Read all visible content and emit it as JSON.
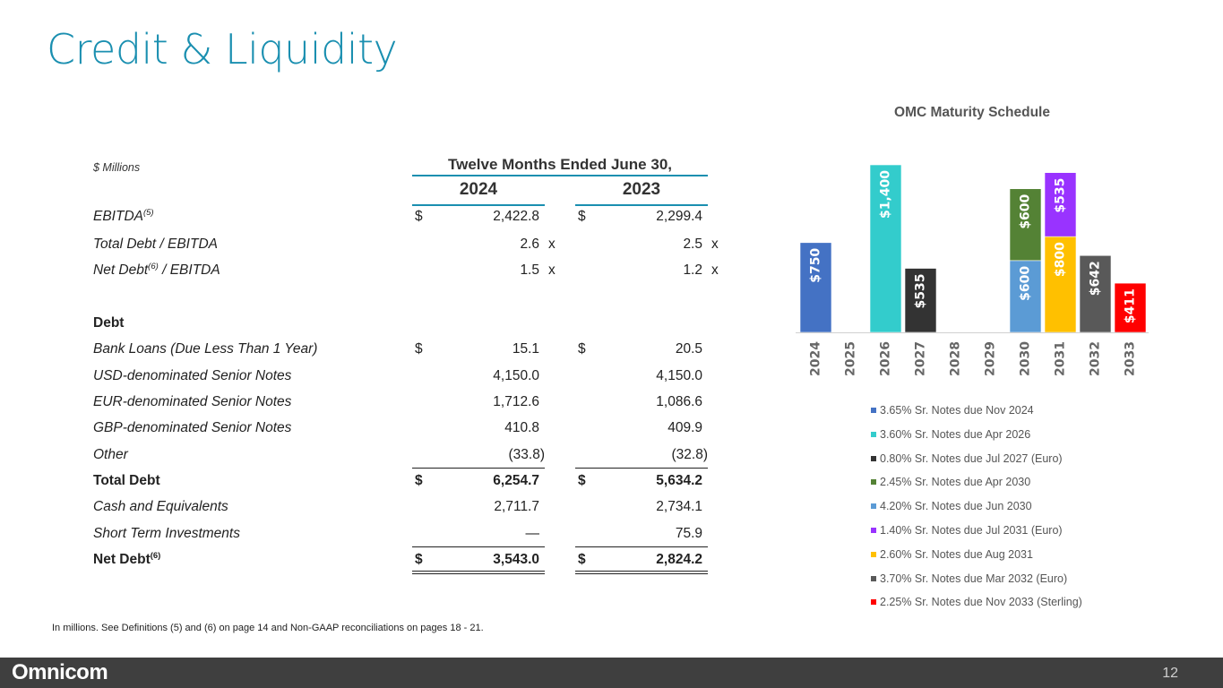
{
  "page": {
    "title": "Credit & Liquidity",
    "page_number": "12",
    "logo": "Omnicom",
    "footnote": "In millions.  See Definitions (5) and (6) on page 14 and Non-GAAP reconciliations on pages 18 - 21."
  },
  "table": {
    "units": "$ Millions",
    "period_header": "Twelve Months Ended June 30,",
    "years": [
      "2024",
      "2023"
    ],
    "rows": [
      {
        "label": "EBITDA",
        "sup": "(5)",
        "cur24": "$",
        "v24": "2,422.8",
        "s24": "",
        "cur23": "$",
        "v23": "2,299.4",
        "s23": ""
      },
      {
        "label": "Total Debt / EBITDA",
        "sup": "",
        "cur24": "",
        "v24": "2.6",
        "s24": "x",
        "cur23": "",
        "v23": "2.5",
        "s23": "x"
      },
      {
        "label": "Net Debt",
        "sup": "(6)",
        "label_tail": " / EBITDA",
        "cur24": "",
        "v24": "1.5",
        "s24": "x",
        "cur23": "",
        "v23": "1.2",
        "s23": "x"
      },
      {
        "label": "Debt",
        "sup": "",
        "cur24": "",
        "v24": "",
        "s24": "",
        "cur23": "",
        "v23": "",
        "s23": ""
      },
      {
        "label": "Bank Loans (Due Less Than 1 Year)",
        "sup": "",
        "cur24": "$",
        "v24": "15.1",
        "s24": "",
        "cur23": "$",
        "v23": "20.5",
        "s23": ""
      },
      {
        "label": "USD-denominated Senior Notes",
        "sup": "",
        "cur24": "",
        "v24": "4,150.0",
        "s24": "",
        "cur23": "",
        "v23": "4,150.0",
        "s23": ""
      },
      {
        "label": "EUR-denominated Senior Notes",
        "sup": "",
        "cur24": "",
        "v24": "1,712.6",
        "s24": "",
        "cur23": "",
        "v23": "1,086.6",
        "s23": ""
      },
      {
        "label": "GBP-denominated Senior Notes",
        "sup": "",
        "cur24": "",
        "v24": "410.8",
        "s24": "",
        "cur23": "",
        "v23": "409.9",
        "s23": ""
      },
      {
        "label": "Other",
        "sup": "",
        "cur24": "",
        "v24": "(33.8)",
        "s24": "",
        "cur23": "",
        "v23": "(32.8)",
        "s23": ""
      },
      {
        "label": "Total Debt",
        "sup": "",
        "cur24": "$",
        "v24": "6,254.7",
        "s24": "",
        "cur23": "$",
        "v23": "5,634.2",
        "s23": ""
      },
      {
        "label": "Cash and Equivalents",
        "sup": "",
        "cur24": "",
        "v24": "2,711.7",
        "s24": "",
        "cur23": "",
        "v23": "2,734.1",
        "s23": ""
      },
      {
        "label": "Short Term Investments",
        "sup": "",
        "cur24": "",
        "v24": "—",
        "s24": "",
        "cur23": "",
        "v23": "75.9",
        "s23": ""
      },
      {
        "label": "Net Debt",
        "sup": "(6)",
        "cur24": "$",
        "v24": "3,543.0",
        "s24": "",
        "cur23": "$",
        "v23": "2,824.2",
        "s23": ""
      }
    ]
  },
  "chart_data": {
    "type": "bar",
    "stacked": true,
    "title": "OMC Maturity Schedule",
    "categories": [
      "2024",
      "2025",
      "2026",
      "2027",
      "2028",
      "2029",
      "2030",
      "2031",
      "2032",
      "2033"
    ],
    "series": [
      {
        "name": "3.65% Sr. Notes due Nov 2024",
        "color": "#4472c4",
        "values": [
          750,
          0,
          0,
          0,
          0,
          0,
          0,
          0,
          0,
          0
        ]
      },
      {
        "name": "3.60% Sr. Notes due Apr 2026",
        "color": "#33cccc",
        "values": [
          0,
          0,
          1400,
          0,
          0,
          0,
          0,
          0,
          0,
          0
        ]
      },
      {
        "name": "0.80% Sr. Notes due Jul 2027 (Euro)",
        "color": "#333333",
        "values": [
          0,
          0,
          0,
          535,
          0,
          0,
          0,
          0,
          0,
          0
        ]
      },
      {
        "name": "2.45% Sr. Notes due Apr 2030",
        "color": "#548235",
        "values": [
          0,
          0,
          0,
          0,
          0,
          0,
          600,
          0,
          0,
          0
        ]
      },
      {
        "name": "4.20% Sr. Notes due Jun 2030",
        "color": "#5b9bd5",
        "values": [
          0,
          0,
          0,
          0,
          0,
          0,
          600,
          0,
          0,
          0
        ]
      },
      {
        "name": "1.40% Sr. Notes due Jul 2031 (Euro)",
        "color": "#9933ff",
        "values": [
          0,
          0,
          0,
          0,
          0,
          0,
          0,
          535,
          0,
          0
        ]
      },
      {
        "name": "2.60% Sr. Notes due Aug 2031",
        "color": "#ffc000",
        "values": [
          0,
          0,
          0,
          0,
          0,
          0,
          0,
          800,
          0,
          0
        ]
      },
      {
        "name": "3.70% Sr. Notes due Mar 2032 (Euro)",
        "color": "#595959",
        "values": [
          0,
          0,
          0,
          0,
          0,
          0,
          0,
          0,
          642,
          0
        ]
      },
      {
        "name": "2.25% Sr. Notes due Nov 2033 (Sterling)",
        "color": "#ff0000",
        "values": [
          0,
          0,
          0,
          0,
          0,
          0,
          0,
          0,
          0,
          411
        ]
      }
    ],
    "stacks": [
      {
        "category": "2024",
        "segments": [
          {
            "series": 0,
            "value": 750,
            "label": "$750"
          }
        ]
      },
      {
        "category": "2026",
        "segments": [
          {
            "series": 1,
            "value": 1400,
            "label": "$1,400"
          }
        ]
      },
      {
        "category": "2027",
        "segments": [
          {
            "series": 2,
            "value": 535,
            "label": "$535"
          }
        ]
      },
      {
        "category": "2030",
        "segments": [
          {
            "series": 4,
            "value": 600,
            "label": "$600"
          },
          {
            "series": 3,
            "value": 600,
            "label": "$600"
          }
        ]
      },
      {
        "category": "2031",
        "segments": [
          {
            "series": 6,
            "value": 800,
            "label": "$800"
          },
          {
            "series": 5,
            "value": 535,
            "label": "$535"
          }
        ]
      },
      {
        "category": "2032",
        "segments": [
          {
            "series": 7,
            "value": 642,
            "label": "$642"
          }
        ]
      },
      {
        "category": "2033",
        "segments": [
          {
            "series": 8,
            "value": 411,
            "label": "$411"
          }
        ]
      }
    ],
    "legend_position": "bottom",
    "grid": false
  }
}
